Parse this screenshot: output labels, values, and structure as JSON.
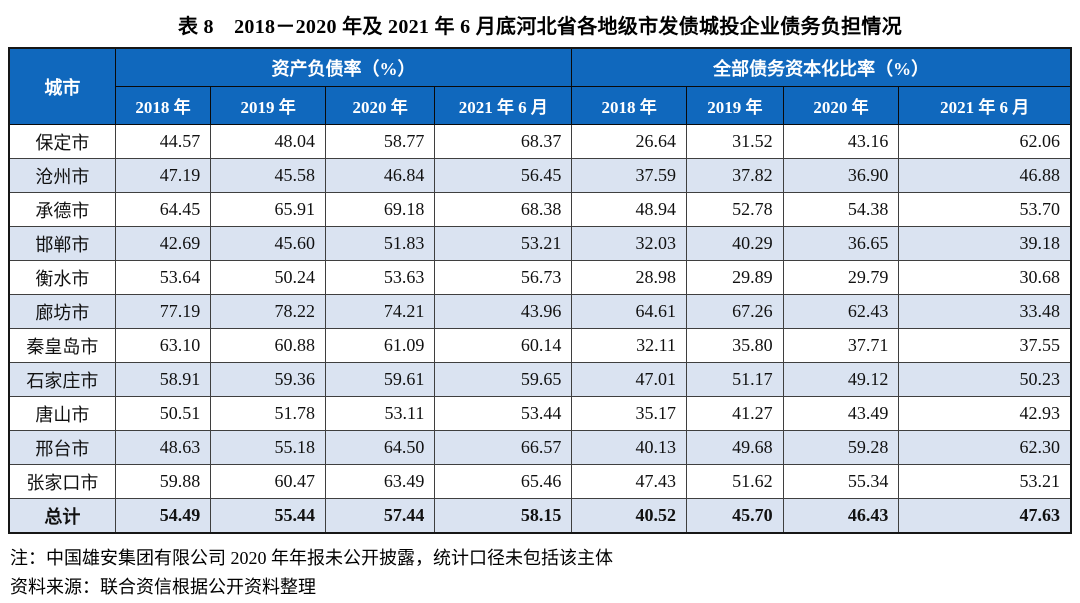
{
  "title": "表 8　2018－2020 年及 2021 年 6 月底河北省各地级市发债城投企业债务负担情况",
  "table": {
    "city_header": "城市",
    "groups": [
      {
        "label": "资产负债率（%）",
        "years": [
          "2018 年",
          "2019 年",
          "2020 年",
          "2021 年 6 月"
        ]
      },
      {
        "label": "全部债务资本化比率（%）",
        "years": [
          "2018 年",
          "2019 年",
          "2020 年",
          "2021 年 6 月"
        ]
      }
    ],
    "rows": [
      {
        "city": "保定市",
        "debt_ratio": [
          "44.57",
          "48.04",
          "58.77",
          "68.37"
        ],
        "capitalization_ratio": [
          "26.64",
          "31.52",
          "43.16",
          "62.06"
        ]
      },
      {
        "city": "沧州市",
        "debt_ratio": [
          "47.19",
          "45.58",
          "46.84",
          "56.45"
        ],
        "capitalization_ratio": [
          "37.59",
          "37.82",
          "36.90",
          "46.88"
        ]
      },
      {
        "city": "承德市",
        "debt_ratio": [
          "64.45",
          "65.91",
          "69.18",
          "68.38"
        ],
        "capitalization_ratio": [
          "48.94",
          "52.78",
          "54.38",
          "53.70"
        ]
      },
      {
        "city": "邯郸市",
        "debt_ratio": [
          "42.69",
          "45.60",
          "51.83",
          "53.21"
        ],
        "capitalization_ratio": [
          "32.03",
          "40.29",
          "36.65",
          "39.18"
        ]
      },
      {
        "city": "衡水市",
        "debt_ratio": [
          "53.64",
          "50.24",
          "53.63",
          "56.73"
        ],
        "capitalization_ratio": [
          "28.98",
          "29.89",
          "29.79",
          "30.68"
        ]
      },
      {
        "city": "廊坊市",
        "debt_ratio": [
          "77.19",
          "78.22",
          "74.21",
          "43.96"
        ],
        "capitalization_ratio": [
          "64.61",
          "67.26",
          "62.43",
          "33.48"
        ]
      },
      {
        "city": "秦皇岛市",
        "debt_ratio": [
          "63.10",
          "60.88",
          "61.09",
          "60.14"
        ],
        "capitalization_ratio": [
          "32.11",
          "35.80",
          "37.71",
          "37.55"
        ]
      },
      {
        "city": "石家庄市",
        "debt_ratio": [
          "58.91",
          "59.36",
          "59.61",
          "59.65"
        ],
        "capitalization_ratio": [
          "47.01",
          "51.17",
          "49.12",
          "50.23"
        ]
      },
      {
        "city": "唐山市",
        "debt_ratio": [
          "50.51",
          "51.78",
          "53.11",
          "53.44"
        ],
        "capitalization_ratio": [
          "35.17",
          "41.27",
          "43.49",
          "42.93"
        ]
      },
      {
        "city": "邢台市",
        "debt_ratio": [
          "48.63",
          "55.18",
          "64.50",
          "66.57"
        ],
        "capitalization_ratio": [
          "40.13",
          "49.68",
          "59.28",
          "62.30"
        ]
      },
      {
        "city": "张家口市",
        "debt_ratio": [
          "59.88",
          "60.47",
          "63.49",
          "65.46"
        ],
        "capitalization_ratio": [
          "47.43",
          "51.62",
          "55.34",
          "53.21"
        ]
      }
    ],
    "total_row": {
      "city": "总计",
      "debt_ratio": [
        "54.49",
        "55.44",
        "57.44",
        "58.15"
      ],
      "capitalization_ratio": [
        "40.52",
        "45.70",
        "46.43",
        "47.63"
      ]
    }
  },
  "notes": [
    "注：中国雄安集团有限公司 2020 年年报未公开披露，统计口径未包括该主体",
    "资料来源：联合资信根据公开资料整理"
  ],
  "colors": {
    "header_bg": "#1068BD",
    "header_text": "#FFFFFF",
    "row_alt_bg": "#DAE3F1"
  }
}
